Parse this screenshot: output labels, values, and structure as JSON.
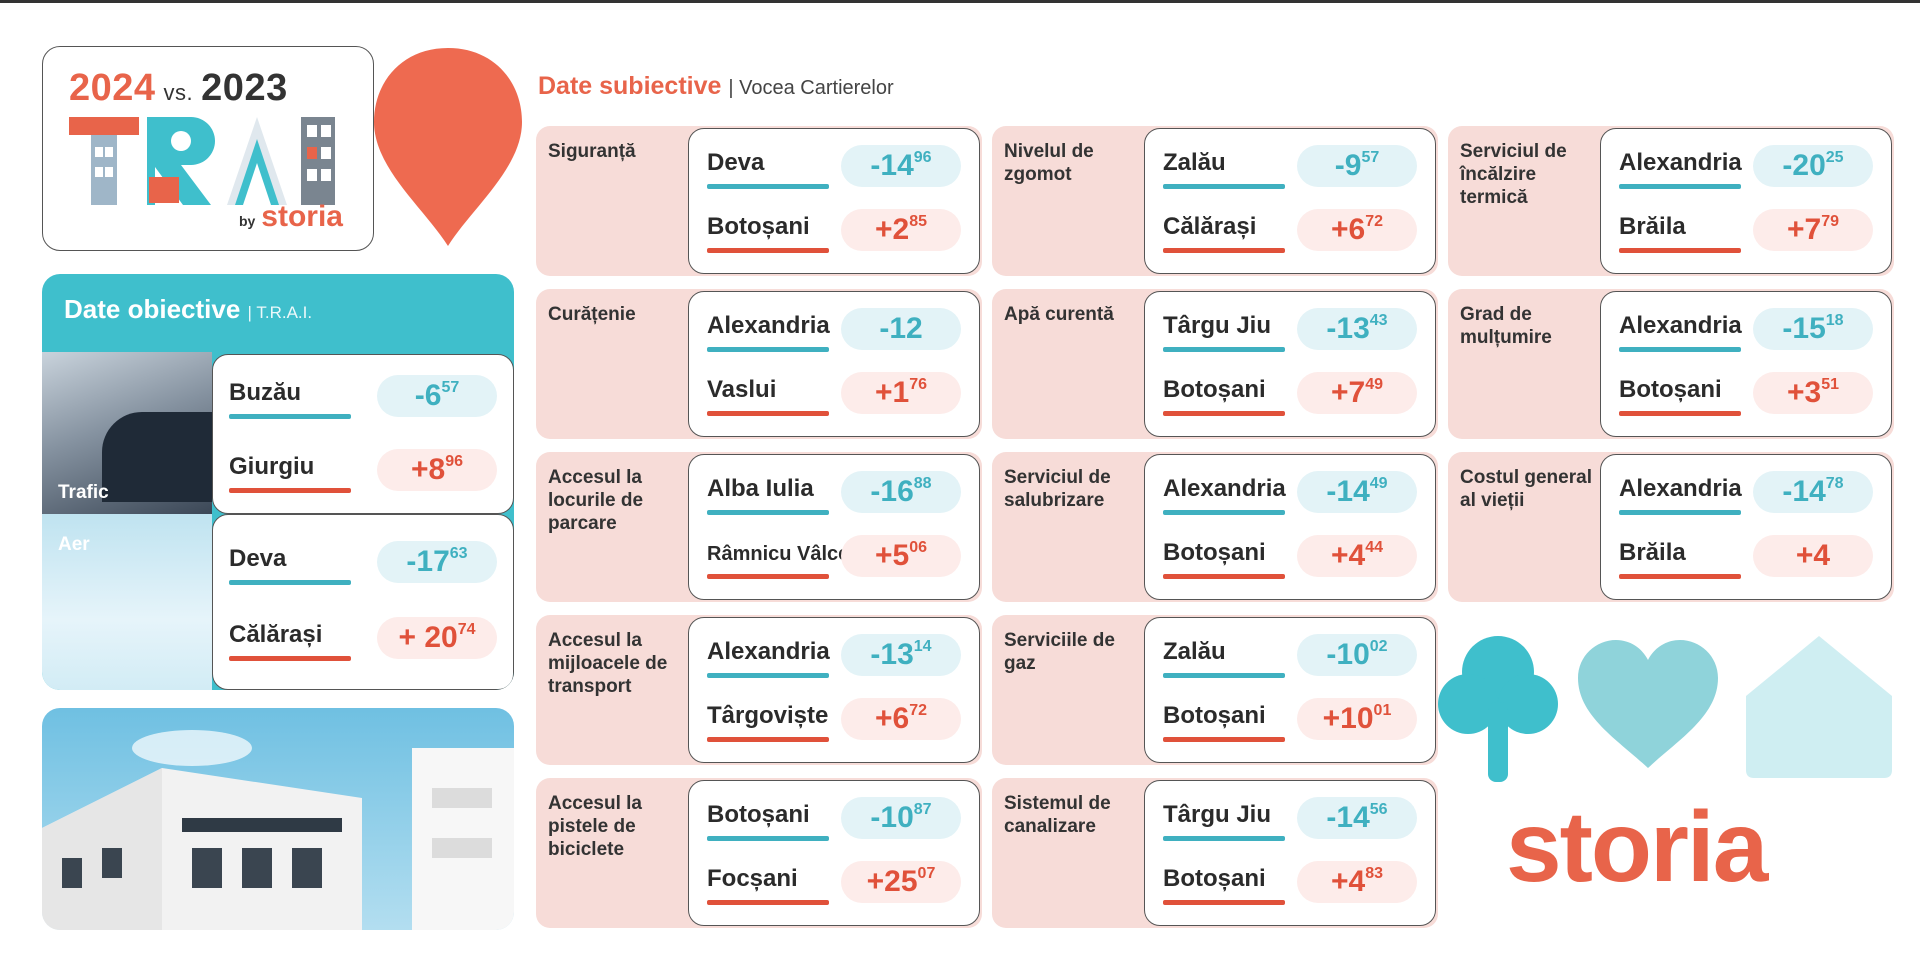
{
  "header": {
    "year_a": "2024",
    "vs": "vs.",
    "year_b": "2023",
    "by": "by",
    "brand": "storia"
  },
  "objective": {
    "title": "Date obiective",
    "subtitle": "| T.R.A.I.",
    "groups": [
      {
        "label": "Trafic",
        "rows": [
          {
            "city": "Buzău",
            "sign": "-",
            "int": "6",
            "dec": "57",
            "trend": "neg"
          },
          {
            "city": "Giurgiu",
            "sign": "+",
            "int": "8",
            "dec": "96",
            "trend": "pos"
          }
        ]
      },
      {
        "label": "Aer",
        "rows": [
          {
            "city": "Deva",
            "sign": "-",
            "int": "17",
            "dec": "63",
            "trend": "neg"
          },
          {
            "city": "Călărași",
            "sign": "+ ",
            "int": "20",
            "dec": "74",
            "trend": "pos"
          }
        ]
      }
    ]
  },
  "subjective": {
    "title": "Date subiective",
    "subtitle": "| Vocea Cartierelor",
    "cells": [
      {
        "label": "Siguranță",
        "rows": [
          {
            "city": "Deva",
            "sign": "-",
            "int": "14",
            "dec": "96",
            "trend": "neg"
          },
          {
            "city": "Botoșani",
            "sign": "+",
            "int": "2",
            "dec": "85",
            "trend": "pos"
          }
        ]
      },
      {
        "label": "Nivelul de zgomot",
        "rows": [
          {
            "city": "Zalău",
            "sign": "-",
            "int": "9",
            "dec": "57",
            "trend": "neg"
          },
          {
            "city": "Călărași",
            "sign": "+",
            "int": "6",
            "dec": "72",
            "trend": "pos"
          }
        ]
      },
      {
        "label": "Serviciul de încălzire termică",
        "rows": [
          {
            "city": "Alexandria",
            "sign": "-",
            "int": "20",
            "dec": "25",
            "trend": "neg"
          },
          {
            "city": "Brăila",
            "sign": "+",
            "int": "7",
            "dec": "79",
            "trend": "pos"
          }
        ]
      },
      {
        "label": "Curățenie",
        "rows": [
          {
            "city": "Alexandria",
            "sign": "-",
            "int": "12",
            "dec": "",
            "trend": "neg"
          },
          {
            "city": "Vaslui",
            "sign": "+",
            "int": "1",
            "dec": "76",
            "trend": "pos"
          }
        ]
      },
      {
        "label": "Apă curentă",
        "rows": [
          {
            "city": "Târgu Jiu",
            "sign": "-",
            "int": "13",
            "dec": "43",
            "trend": "neg"
          },
          {
            "city": "Botoșani",
            "sign": "+",
            "int": "7",
            "dec": "49",
            "trend": "pos"
          }
        ]
      },
      {
        "label": "Grad de mulțumire",
        "rows": [
          {
            "city": "Alexandria",
            "sign": "-",
            "int": "15",
            "dec": "18",
            "trend": "neg"
          },
          {
            "city": "Botoșani",
            "sign": "+",
            "int": "3",
            "dec": "51",
            "trend": "pos"
          }
        ]
      },
      {
        "label": "Accesul la locurile de parcare",
        "rows": [
          {
            "city": "Alba Iulia",
            "sign": "-",
            "int": "16",
            "dec": "88",
            "trend": "neg"
          },
          {
            "city": "Râmnicu Vâlcea",
            "sign": "+",
            "int": "5",
            "dec": "06",
            "trend": "pos"
          }
        ]
      },
      {
        "label": "Serviciul de salubrizare",
        "rows": [
          {
            "city": "Alexandria",
            "sign": "-",
            "int": "14",
            "dec": "49",
            "trend": "neg"
          },
          {
            "city": "Botoșani",
            "sign": "+",
            "int": "4",
            "dec": "44",
            "trend": "pos"
          }
        ]
      },
      {
        "label": "Costul general al vieții",
        "rows": [
          {
            "city": "Alexandria",
            "sign": "-",
            "int": "14",
            "dec": "78",
            "trend": "neg"
          },
          {
            "city": "Brăila",
            "sign": "+",
            "int": "4",
            "dec": "",
            "trend": "pos"
          }
        ]
      },
      {
        "label": "Accesul la mijloacele de transport",
        "rows": [
          {
            "city": "Alexandria",
            "sign": "-",
            "int": "13",
            "dec": "14",
            "trend": "neg"
          },
          {
            "city": "Târgoviște",
            "sign": "+",
            "int": "6",
            "dec": "72",
            "trend": "pos"
          }
        ]
      },
      {
        "label": "Serviciile de gaz",
        "rows": [
          {
            "city": "Zalău",
            "sign": "-",
            "int": "10",
            "dec": "02",
            "trend": "neg"
          },
          {
            "city": "Botoșani",
            "sign": "+",
            "int": "10",
            "dec": "01",
            "trend": "pos"
          }
        ]
      },
      {
        "label": "Accesul la pistele de biciclete",
        "rows": [
          {
            "city": "Botoșani",
            "sign": "-",
            "int": "10",
            "dec": "87",
            "trend": "neg"
          },
          {
            "city": "Focșani",
            "sign": "+",
            "int": "25",
            "dec": "07",
            "trend": "pos"
          }
        ]
      },
      {
        "label": "Sistemul de canalizare",
        "rows": [
          {
            "city": "Târgu Jiu",
            "sign": "-",
            "int": "14",
            "dec": "56",
            "trend": "neg"
          },
          {
            "city": "Botoșani",
            "sign": "+",
            "int": "4",
            "dec": "83",
            "trend": "pos"
          }
        ]
      }
    ]
  },
  "footer": {
    "brand_big": "storia"
  },
  "colors": {
    "coral": "#e8644a",
    "teal": "#3fbfcc",
    "pink": "#f7dcd8"
  },
  "icons": [
    "map-pin-icon",
    "tree-icon",
    "heart-icon",
    "house-icon"
  ]
}
